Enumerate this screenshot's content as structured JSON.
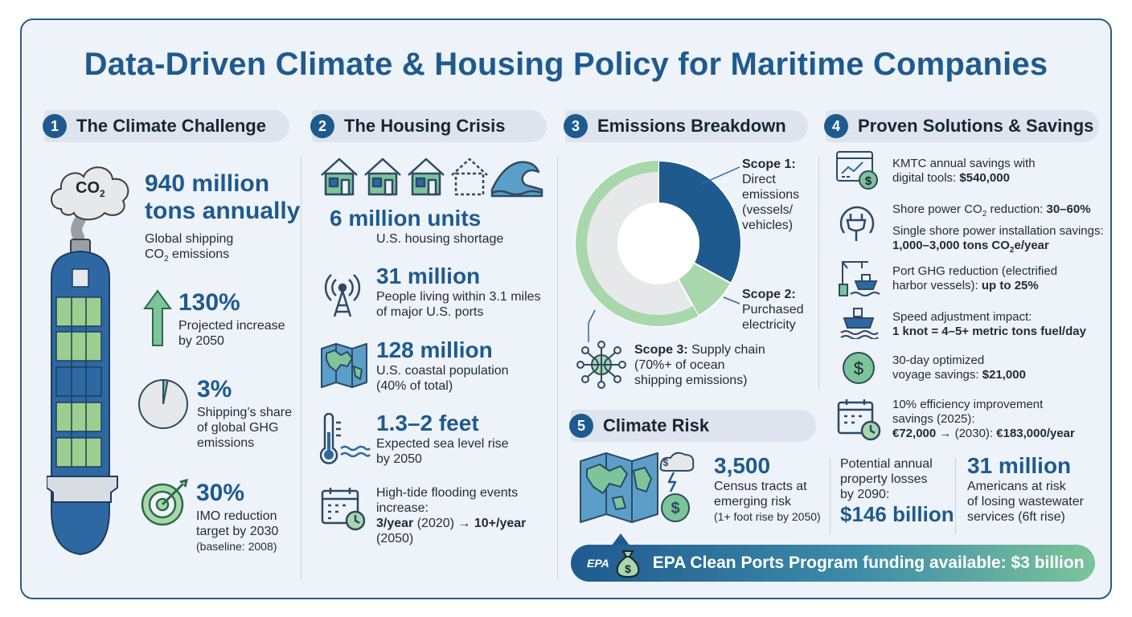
{
  "title": "Data-Driven Climate & Housing Policy for Maritime Companies",
  "colors": {
    "primary": "#1f5a8f",
    "green": "#7cc49a",
    "light_green": "#a9d7ac",
    "bg": "#eef3f9"
  },
  "sections": {
    "climate": {
      "num": "1",
      "title": "The Climate Challenge",
      "co2_icon_label": "CO",
      "co2_icon_sub": "2",
      "stats": [
        {
          "big_line1": "940 million",
          "big_line2": "tons annually",
          "line1": "Global shipping",
          "line2a": "CO",
          "line2sub": "2",
          "line2b": " emissions"
        },
        {
          "big": "130%",
          "line1": "Projected increase",
          "line2": "by 2050"
        },
        {
          "big": "3%",
          "line1": "Shipping’s share",
          "line2": "of global GHG",
          "line3": "emissions",
          "pie_fraction": 0.03
        },
        {
          "big": "30%",
          "line1": "IMO reduction",
          "line2": "target by 2030",
          "line3": "(baseline: 2008)"
        }
      ]
    },
    "housing": {
      "num": "2",
      "title": "The Housing Crisis",
      "stats": [
        {
          "big": "6 million units",
          "line1": "U.S. housing shortage"
        },
        {
          "big": "31 million",
          "line1": "People living within 3.1 miles",
          "line2": "of major U.S. ports"
        },
        {
          "big": "128 million",
          "line1": "U.S. coastal population",
          "line2": "(40% of total)"
        },
        {
          "big": "1.3–2 feet",
          "line1": "Expected sea level rise",
          "line2": "by 2050"
        },
        {
          "line1": "High-tide flooding events",
          "line2": "increase:",
          "line3_bold": "3/year",
          "line3_rest": " (2020) → ",
          "line3_bold2": "10+/year",
          "line4": "(2050)"
        }
      ]
    },
    "emissions": {
      "num": "3",
      "title": "Emissions Breakdown",
      "scope1": {
        "head": "Scope 1:",
        "l1": "Direct",
        "l2": "emissions",
        "l3": "(vessels/",
        "l4": "vehicles)"
      },
      "scope2": {
        "head": "Scope 2:",
        "l1": "Purchased",
        "l2": "electricity"
      },
      "scope3": {
        "head": "Scope 3:",
        "l1": " Supply chain",
        "l2": "(70%+ of ocean",
        "l3": "shipping emissions)"
      },
      "donut": [
        {
          "name": "Scope 1",
          "value": 0.33,
          "color": "#1f5a8f"
        },
        {
          "name": "Scope 2",
          "value": 0.09,
          "color": "#a9d7ac"
        },
        {
          "name": "Scope 3",
          "value": 0.58,
          "color": "#e6e8ea"
        }
      ]
    },
    "solutions": {
      "num": "4",
      "title": "Proven Solutions & Savings",
      "items": [
        {
          "icon": "dashboard-savings-icon",
          "l1": "KMTC annual savings with",
          "l2a": "digital tools: ",
          "l2b": "$540,000"
        },
        {
          "icon": "plug-icon",
          "l1a": "Shore power CO",
          "l1sub": "2",
          "l1b": " reduction: ",
          "l1c": "30–60%",
          "l2": "Single shore power installation savings:",
          "l3a": "1,000–3,000 tons CO",
          "l3sub": "2",
          "l3b": "e/year"
        },
        {
          "icon": "port-crane-ship-icon",
          "l1": "Port GHG reduction (electrified",
          "l2a": "harbor vessels): ",
          "l2b": "up to 25%"
        },
        {
          "icon": "ship-icon",
          "l1": "Speed adjustment impact:",
          "l2": "1 knot = 4–5+ metric tons fuel/day"
        },
        {
          "icon": "dollar-coin-icon",
          "l1": "30-day optimized",
          "l2a": "voyage savings: ",
          "l2b": "$21,000"
        },
        {
          "icon": "calendar-clock-icon",
          "l1": "10% efficiency improvement",
          "l2": "savings (2025):",
          "l3a": "€72,000",
          "l3b": " → (2030): ",
          "l3c": "€183,000/year"
        }
      ]
    },
    "risk": {
      "num": "5",
      "title": "Climate Risk",
      "tracts": {
        "big": "3,500",
        "l1": "Census tracts at",
        "l2": "emerging risk",
        "l3": "(1+ foot rise by 2050)"
      },
      "losses": {
        "l1": "Potential annual",
        "l2": "property losses",
        "l3": "by 2090:",
        "big": "$146 billion"
      },
      "wastewater": {
        "big": "31 million",
        "l1": "Americans at risk",
        "l2": "of losing wastewater",
        "l3": "services (6ft rise)"
      }
    }
  },
  "banner": {
    "logo": "EPA",
    "text": "EPA Clean Ports Program funding available: $3 billion"
  }
}
